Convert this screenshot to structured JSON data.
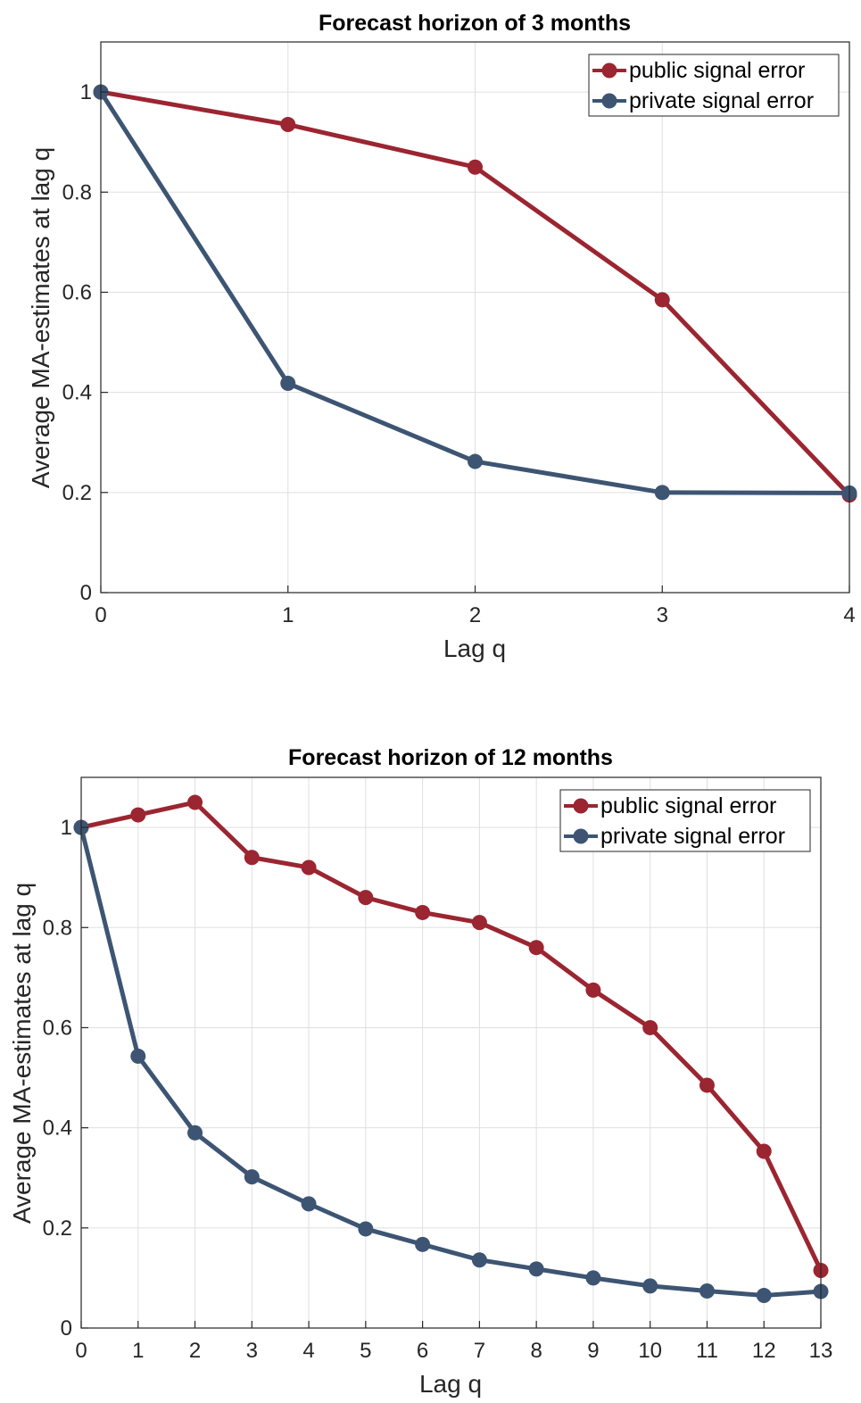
{
  "colors": {
    "public": "#9b2530",
    "private": "#3d5573"
  },
  "chart_data": [
    {
      "type": "line",
      "title": "Forecast horizon of 3 months",
      "xlabel": "Lag q",
      "ylabel": "Average MA-estimates at lag q",
      "xlim": [
        0,
        4
      ],
      "ylim": [
        0,
        1.1
      ],
      "xticks": [
        "0",
        "1",
        "2",
        "3",
        "4"
      ],
      "yticks": [
        "0",
        "0.2",
        "0.4",
        "0.6",
        "0.8",
        "1"
      ],
      "x": [
        0,
        1,
        2,
        3,
        4
      ],
      "grid": true,
      "legend_position": "top-right",
      "series": [
        {
          "name": "public signal error",
          "color": "#9b2530",
          "values": [
            1.0,
            0.935,
            0.85,
            0.585,
            0.195
          ]
        },
        {
          "name": "private signal error",
          "color": "#3d5573",
          "values": [
            1.0,
            0.418,
            0.262,
            0.2,
            0.199
          ]
        }
      ]
    },
    {
      "type": "line",
      "title": "Forecast horizon of 12 months",
      "xlabel": "Lag q",
      "ylabel": "Average MA-estimates at lag q",
      "xlim": [
        0,
        13
      ],
      "ylim": [
        0,
        1.1
      ],
      "xticks": [
        "0",
        "1",
        "2",
        "3",
        "4",
        "5",
        "6",
        "7",
        "8",
        "9",
        "10",
        "11",
        "12",
        "13"
      ],
      "yticks": [
        "0",
        "0.2",
        "0.4",
        "0.6",
        "0.8",
        "1"
      ],
      "x": [
        0,
        1,
        2,
        3,
        4,
        5,
        6,
        7,
        8,
        9,
        10,
        11,
        12,
        13
      ],
      "grid": true,
      "legend_position": "top-right",
      "series": [
        {
          "name": "public signal error",
          "color": "#9b2530",
          "values": [
            1.0,
            1.025,
            1.05,
            0.94,
            0.92,
            0.86,
            0.83,
            0.81,
            0.76,
            0.675,
            0.6,
            0.485,
            0.353,
            0.115
          ]
        },
        {
          "name": "private signal error",
          "color": "#3d5573",
          "values": [
            1.0,
            0.543,
            0.39,
            0.302,
            0.248,
            0.198,
            0.167,
            0.136,
            0.118,
            0.1,
            0.084,
            0.074,
            0.065,
            0.073
          ]
        }
      ]
    }
  ]
}
